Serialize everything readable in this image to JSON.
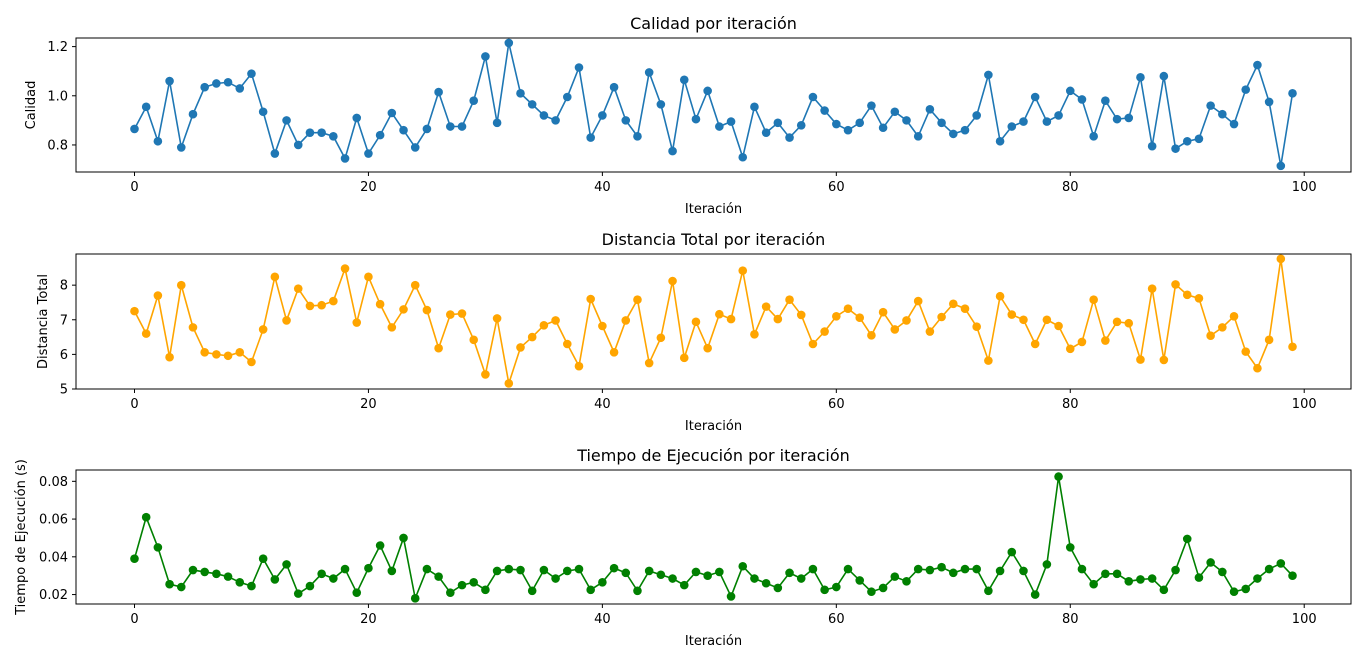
{
  "chart_data": [
    {
      "type": "line",
      "title": "Calidad por iteración",
      "xlabel": "Iteración",
      "ylabel": "Calidad",
      "xlim": [
        -5,
        104
      ],
      "ylim": [
        0.69,
        1.235
      ],
      "xticks": [
        0,
        20,
        40,
        60,
        80,
        100
      ],
      "yticks": [
        0.8,
        1.0,
        1.2
      ],
      "ytick_labels": [
        "0.8",
        "1.0",
        "1.2"
      ],
      "color": "#1f77b4",
      "grid": false,
      "series": [
        {
          "values": [
            0.865,
            0.955,
            0.815,
            1.06,
            0.79,
            0.925,
            1.035,
            1.05,
            1.055,
            1.03,
            1.09,
            0.935,
            0.765,
            0.9,
            0.8,
            0.85,
            0.85,
            0.835,
            0.745,
            0.91,
            0.765,
            0.84,
            0.93,
            0.86,
            0.79,
            0.865,
            1.015,
            0.875,
            0.875,
            0.98,
            1.16,
            0.89,
            1.215,
            1.01,
            0.965,
            0.92,
            0.9,
            0.995,
            1.115,
            0.83,
            0.92,
            1.035,
            0.9,
            0.835,
            1.095,
            0.965,
            0.775,
            1.065,
            0.905,
            1.02,
            0.875,
            0.895,
            0.75,
            0.955,
            0.85,
            0.89,
            0.83,
            0.88,
            0.995,
            0.94,
            0.885,
            0.86,
            0.89,
            0.96,
            0.87,
            0.935,
            0.9,
            0.835,
            0.945,
            0.89,
            0.845,
            0.86,
            0.92,
            1.085,
            0.815,
            0.875,
            0.895,
            0.995,
            0.895,
            0.92,
            1.02,
            0.985,
            0.835,
            0.98,
            0.905,
            0.91,
            1.075,
            0.795,
            1.08,
            0.785,
            0.815,
            0.825,
            0.96,
            0.925,
            0.885,
            1.025,
            1.125,
            0.975,
            0.715,
            1.01
          ]
        }
      ]
    },
    {
      "type": "line",
      "title": "Distancia Total por iteración",
      "xlabel": "Iteración",
      "ylabel": "Distancia Total",
      "xlim": [
        -5,
        104
      ],
      "ylim": [
        5.0,
        8.9
      ],
      "xticks": [
        0,
        20,
        40,
        60,
        80,
        100
      ],
      "yticks": [
        5,
        6,
        7,
        8
      ],
      "ytick_labels": [
        "5",
        "6",
        "7",
        "8"
      ],
      "color": "#ffa500",
      "grid": false,
      "series": [
        {
          "values": [
            7.25,
            6.6,
            7.7,
            5.92,
            8.0,
            6.78,
            6.06,
            6.0,
            5.96,
            6.06,
            5.78,
            6.72,
            8.24,
            6.98,
            7.9,
            7.4,
            7.42,
            7.54,
            8.48,
            6.92,
            8.24,
            7.45,
            6.78,
            7.3,
            8.0,
            7.28,
            6.18,
            7.15,
            7.18,
            6.42,
            5.42,
            7.04,
            5.16,
            6.2,
            6.5,
            6.84,
            6.98,
            6.3,
            5.66,
            7.6,
            6.82,
            6.06,
            6.98,
            7.58,
            5.75,
            6.48,
            8.12,
            5.9,
            6.94,
            6.18,
            7.16,
            7.02,
            8.42,
            6.58,
            7.38,
            7.02,
            7.58,
            7.14,
            6.3,
            6.66,
            7.1,
            7.32,
            7.06,
            6.55,
            7.22,
            6.72,
            6.98,
            7.54,
            6.66,
            7.08,
            7.46,
            7.32,
            6.8,
            5.82,
            7.68,
            7.15,
            7.0,
            6.3,
            7.0,
            6.82,
            6.16,
            6.36,
            7.58,
            6.4,
            6.94,
            6.9,
            5.85,
            7.9,
            5.84,
            8.02,
            7.72,
            7.62,
            6.54,
            6.78,
            7.1,
            6.08,
            5.6,
            6.42,
            8.76,
            6.22
          ]
        }
      ]
    },
    {
      "type": "line",
      "title": "Tiempo de Ejecución por iteración",
      "xlabel": "Iteración",
      "ylabel": "Tiempo de Ejecución (s)",
      "xlim": [
        -5,
        104
      ],
      "ylim": [
        0.015,
        0.086
      ],
      "xticks": [
        0,
        20,
        40,
        60,
        80,
        100
      ],
      "yticks": [
        0.02,
        0.04,
        0.06,
        0.08
      ],
      "ytick_labels": [
        "0.02",
        "0.04",
        "0.06",
        "0.08"
      ],
      "color": "#008000",
      "grid": false,
      "series": [
        {
          "values": [
            0.039,
            0.061,
            0.045,
            0.0255,
            0.024,
            0.033,
            0.032,
            0.031,
            0.0295,
            0.0265,
            0.0245,
            0.039,
            0.028,
            0.036,
            0.0205,
            0.0245,
            0.031,
            0.0285,
            0.0335,
            0.021,
            0.034,
            0.046,
            0.0325,
            0.05,
            0.018,
            0.0335,
            0.0295,
            0.021,
            0.025,
            0.0265,
            0.0225,
            0.0325,
            0.0335,
            0.033,
            0.022,
            0.033,
            0.0285,
            0.0325,
            0.0335,
            0.0225,
            0.0265,
            0.034,
            0.0315,
            0.022,
            0.0325,
            0.0305,
            0.0285,
            0.025,
            0.032,
            0.03,
            0.032,
            0.019,
            0.035,
            0.0285,
            0.026,
            0.0235,
            0.0315,
            0.0285,
            0.0335,
            0.0225,
            0.024,
            0.0335,
            0.0275,
            0.0215,
            0.0235,
            0.0295,
            0.027,
            0.0335,
            0.033,
            0.0345,
            0.0315,
            0.0335,
            0.0335,
            0.022,
            0.0325,
            0.0425,
            0.0325,
            0.02,
            0.036,
            0.0825,
            0.045,
            0.0335,
            0.0255,
            0.031,
            0.031,
            0.027,
            0.028,
            0.0285,
            0.0225,
            0.033,
            0.0495,
            0.029,
            0.037,
            0.032,
            0.0215,
            0.023,
            0.0285,
            0.0335,
            0.0365,
            0.03
          ]
        }
      ]
    }
  ]
}
